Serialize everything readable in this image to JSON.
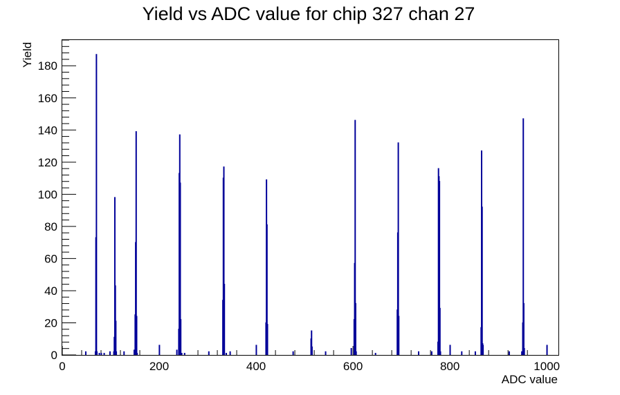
{
  "chart_data": {
    "type": "histogram",
    "title": "Yield vs ADC value for chip 327 chan 27",
    "xlabel": "ADC value",
    "ylabel": "Yield",
    "xlim": [
      0,
      1024
    ],
    "ylim": [
      0,
      196
    ],
    "x_ticks": [
      0,
      200,
      400,
      600,
      800,
      1000
    ],
    "y_ticks": [
      0,
      20,
      40,
      60,
      80,
      100,
      120,
      140,
      160,
      180
    ],
    "line_color": "#000099",
    "bins": [
      {
        "x": 48,
        "y": 2
      },
      {
        "x": 68,
        "y": 2
      },
      {
        "x": 69,
        "y": 73
      },
      {
        "x": 70,
        "y": 187
      },
      {
        "x": 71,
        "y": 2
      },
      {
        "x": 76,
        "y": 1
      },
      {
        "x": 80,
        "y": 1
      },
      {
        "x": 86,
        "y": 1
      },
      {
        "x": 98,
        "y": 2
      },
      {
        "x": 106,
        "y": 2
      },
      {
        "x": 107,
        "y": 11
      },
      {
        "x": 108,
        "y": 98
      },
      {
        "x": 109,
        "y": 43
      },
      {
        "x": 110,
        "y": 21
      },
      {
        "x": 111,
        "y": 2
      },
      {
        "x": 127,
        "y": 2
      },
      {
        "x": 148,
        "y": 3
      },
      {
        "x": 150,
        "y": 25
      },
      {
        "x": 151,
        "y": 70
      },
      {
        "x": 152,
        "y": 139
      },
      {
        "x": 153,
        "y": 24
      },
      {
        "x": 154,
        "y": 1
      },
      {
        "x": 200,
        "y": 6
      },
      {
        "x": 236,
        "y": 3
      },
      {
        "x": 240,
        "y": 16
      },
      {
        "x": 241,
        "y": 113
      },
      {
        "x": 242,
        "y": 137
      },
      {
        "x": 243,
        "y": 107
      },
      {
        "x": 244,
        "y": 22
      },
      {
        "x": 246,
        "y": 1
      },
      {
        "x": 252,
        "y": 1
      },
      {
        "x": 302,
        "y": 2
      },
      {
        "x": 331,
        "y": 34
      },
      {
        "x": 332,
        "y": 110
      },
      {
        "x": 333,
        "y": 117
      },
      {
        "x": 334,
        "y": 44
      },
      {
        "x": 338,
        "y": 1
      },
      {
        "x": 346,
        "y": 2
      },
      {
        "x": 400,
        "y": 6
      },
      {
        "x": 420,
        "y": 20
      },
      {
        "x": 421,
        "y": 109
      },
      {
        "x": 422,
        "y": 81
      },
      {
        "x": 423,
        "y": 19
      },
      {
        "x": 476,
        "y": 2
      },
      {
        "x": 513,
        "y": 10
      },
      {
        "x": 514,
        "y": 15
      },
      {
        "x": 515,
        "y": 5
      },
      {
        "x": 543,
        "y": 2
      },
      {
        "x": 596,
        "y": 4
      },
      {
        "x": 602,
        "y": 22
      },
      {
        "x": 603,
        "y": 57
      },
      {
        "x": 604,
        "y": 146
      },
      {
        "x": 605,
        "y": 32
      },
      {
        "x": 606,
        "y": 2
      },
      {
        "x": 646,
        "y": 1
      },
      {
        "x": 691,
        "y": 28
      },
      {
        "x": 692,
        "y": 76
      },
      {
        "x": 693,
        "y": 132
      },
      {
        "x": 694,
        "y": 24
      },
      {
        "x": 735,
        "y": 2
      },
      {
        "x": 762,
        "y": 2
      },
      {
        "x": 775,
        "y": 8
      },
      {
        "x": 776,
        "y": 116
      },
      {
        "x": 777,
        "y": 111
      },
      {
        "x": 778,
        "y": 108
      },
      {
        "x": 779,
        "y": 29
      },
      {
        "x": 780,
        "y": 2
      },
      {
        "x": 800,
        "y": 6
      },
      {
        "x": 824,
        "y": 2
      },
      {
        "x": 852,
        "y": 2
      },
      {
        "x": 864,
        "y": 17
      },
      {
        "x": 865,
        "y": 127
      },
      {
        "x": 866,
        "y": 92
      },
      {
        "x": 867,
        "y": 7
      },
      {
        "x": 868,
        "y": 6
      },
      {
        "x": 922,
        "y": 2
      },
      {
        "x": 948,
        "y": 2
      },
      {
        "x": 950,
        "y": 20
      },
      {
        "x": 951,
        "y": 147
      },
      {
        "x": 952,
        "y": 32
      },
      {
        "x": 953,
        "y": 4
      },
      {
        "x": 1000,
        "y": 6
      }
    ]
  }
}
